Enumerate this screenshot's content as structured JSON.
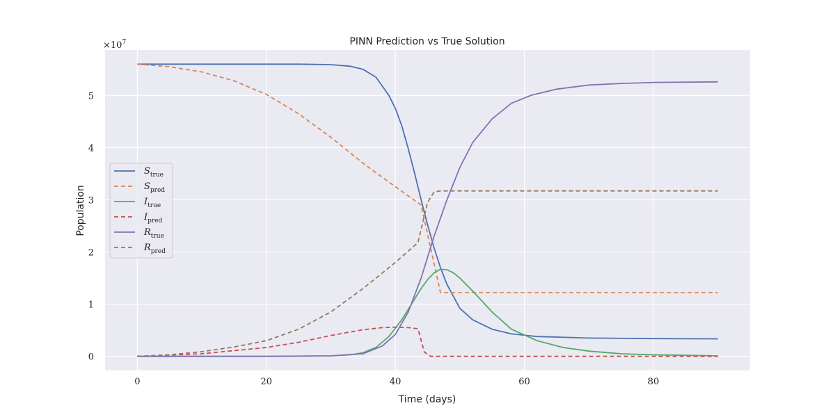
{
  "chart_data": {
    "type": "line",
    "title": "PINN Prediction vs True Solution",
    "xlabel": "Time (days)",
    "ylabel": "Population",
    "y_multiplier_label": "×10",
    "y_multiplier_exp": "7",
    "xlim": [
      -5,
      95
    ],
    "ylim": [
      -0.27,
      5.87
    ],
    "xticks": [
      0,
      20,
      40,
      60,
      80
    ],
    "yticks": [
      0,
      1,
      2,
      3,
      4,
      5
    ],
    "grid": true,
    "legend_placement": "center-left",
    "series": [
      {
        "name": "S",
        "subscript": "true",
        "dashed": false,
        "color": "#4c72b0",
        "x": [
          0,
          10,
          20,
          25,
          30,
          33,
          35,
          37,
          39,
          40,
          41,
          42,
          43,
          44,
          45,
          46,
          47,
          48,
          50,
          52,
          55,
          58,
          62,
          70,
          80,
          90
        ],
        "y": [
          5.6,
          5.6,
          5.6,
          5.6,
          5.59,
          5.56,
          5.5,
          5.35,
          5.0,
          4.75,
          4.42,
          3.98,
          3.5,
          3.0,
          2.52,
          2.08,
          1.7,
          1.38,
          0.92,
          0.7,
          0.52,
          0.43,
          0.38,
          0.35,
          0.34,
          0.335
        ]
      },
      {
        "name": "S",
        "subscript": "pred",
        "dashed": true,
        "color": "#dd8452",
        "x": [
          0,
          5,
          10,
          15,
          20,
          25,
          30,
          35,
          40,
          44,
          47,
          50,
          60,
          70,
          80,
          90
        ],
        "y": [
          5.6,
          5.55,
          5.45,
          5.28,
          5.02,
          4.65,
          4.2,
          3.7,
          3.25,
          2.9,
          1.22,
          1.22,
          1.22,
          1.22,
          1.22,
          1.22
        ]
      },
      {
        "name": "I",
        "subscript": "true",
        "dashed": false,
        "color": "#55a868",
        "x": [
          0,
          20,
          30,
          33,
          35,
          37,
          39,
          41,
          43,
          44,
          45,
          46,
          47,
          48,
          49,
          50,
          52,
          55,
          58,
          62,
          66,
          70,
          75,
          80,
          85,
          90
        ],
        "y": [
          0,
          0,
          0.01,
          0.03,
          0.07,
          0.17,
          0.38,
          0.7,
          1.1,
          1.3,
          1.47,
          1.6,
          1.67,
          1.66,
          1.6,
          1.5,
          1.25,
          0.85,
          0.52,
          0.3,
          0.17,
          0.1,
          0.05,
          0.03,
          0.02,
          0.01
        ]
      },
      {
        "name": "I",
        "subscript": "pred",
        "dashed": true,
        "color": "#c44e52",
        "x": [
          0,
          10,
          20,
          25,
          30,
          35,
          38,
          40,
          42,
          43.5,
          44.5,
          45.5,
          47,
          50,
          60,
          70,
          80,
          90
        ],
        "y": [
          0,
          0.05,
          0.17,
          0.27,
          0.4,
          0.51,
          0.55,
          0.56,
          0.55,
          0.53,
          0.08,
          0,
          0,
          0,
          0,
          0,
          0,
          0
        ]
      },
      {
        "name": "R",
        "subscript": "true",
        "dashed": false,
        "color": "#8172b3",
        "x": [
          0,
          20,
          30,
          35,
          38,
          40,
          42,
          44,
          46,
          48,
          50,
          52,
          55,
          58,
          61,
          65,
          70,
          75,
          80,
          90
        ],
        "y": [
          0,
          0,
          0.01,
          0.05,
          0.2,
          0.42,
          0.85,
          1.5,
          2.3,
          3.0,
          3.62,
          4.1,
          4.55,
          4.85,
          5.0,
          5.12,
          5.2,
          5.23,
          5.25,
          5.26
        ]
      },
      {
        "name": "R",
        "subscript": "pred",
        "dashed": true,
        "color": "#937860",
        "x": [
          0,
          5,
          10,
          15,
          20,
          25,
          30,
          35,
          40,
          43.5,
          45,
          46,
          47,
          50,
          60,
          70,
          80,
          90
        ],
        "y": [
          0,
          0.03,
          0.09,
          0.18,
          0.3,
          0.52,
          0.85,
          1.3,
          1.8,
          2.18,
          2.95,
          3.15,
          3.17,
          3.17,
          3.17,
          3.17,
          3.17,
          3.17
        ]
      }
    ]
  }
}
